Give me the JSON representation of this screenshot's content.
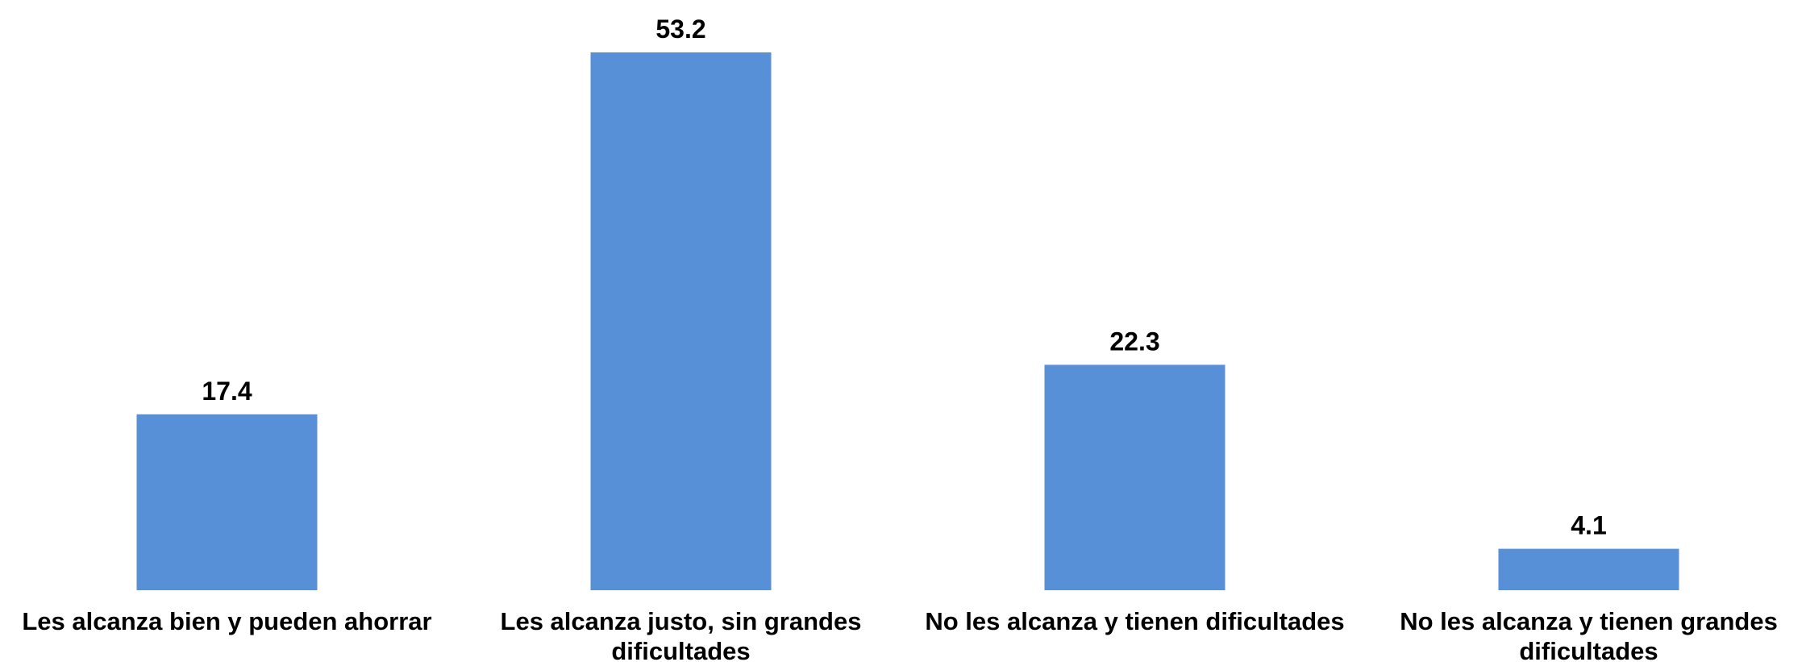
{
  "chart_data": {
    "type": "bar",
    "title": "",
    "xlabel": "",
    "ylabel": "",
    "categories": [
      "Les alcanza bien y pueden ahorrar",
      "Les alcanza justo, sin grandes dificultades",
      "No les alcanza y tienen dificultades",
      "No les alcanza y tienen grandes dificultades"
    ],
    "category_label_lines": [
      [
        "Les alcanza bien y pueden ahorrar"
      ],
      [
        "Les alcanza justo, sin grandes",
        "dificultades"
      ],
      [
        "No les alcanza y tienen dificultades"
      ],
      [
        "No les alcanza y tienen grandes",
        "dificultades"
      ]
    ],
    "values": [
      17.4,
      53.2,
      22.3,
      4.1
    ],
    "value_labels": [
      "17.4",
      "53.2",
      "22.3",
      "4.1"
    ],
    "ylim": [
      0,
      53.2
    ],
    "grid": false,
    "legend": "none",
    "bar_color": "#5790D6"
  }
}
